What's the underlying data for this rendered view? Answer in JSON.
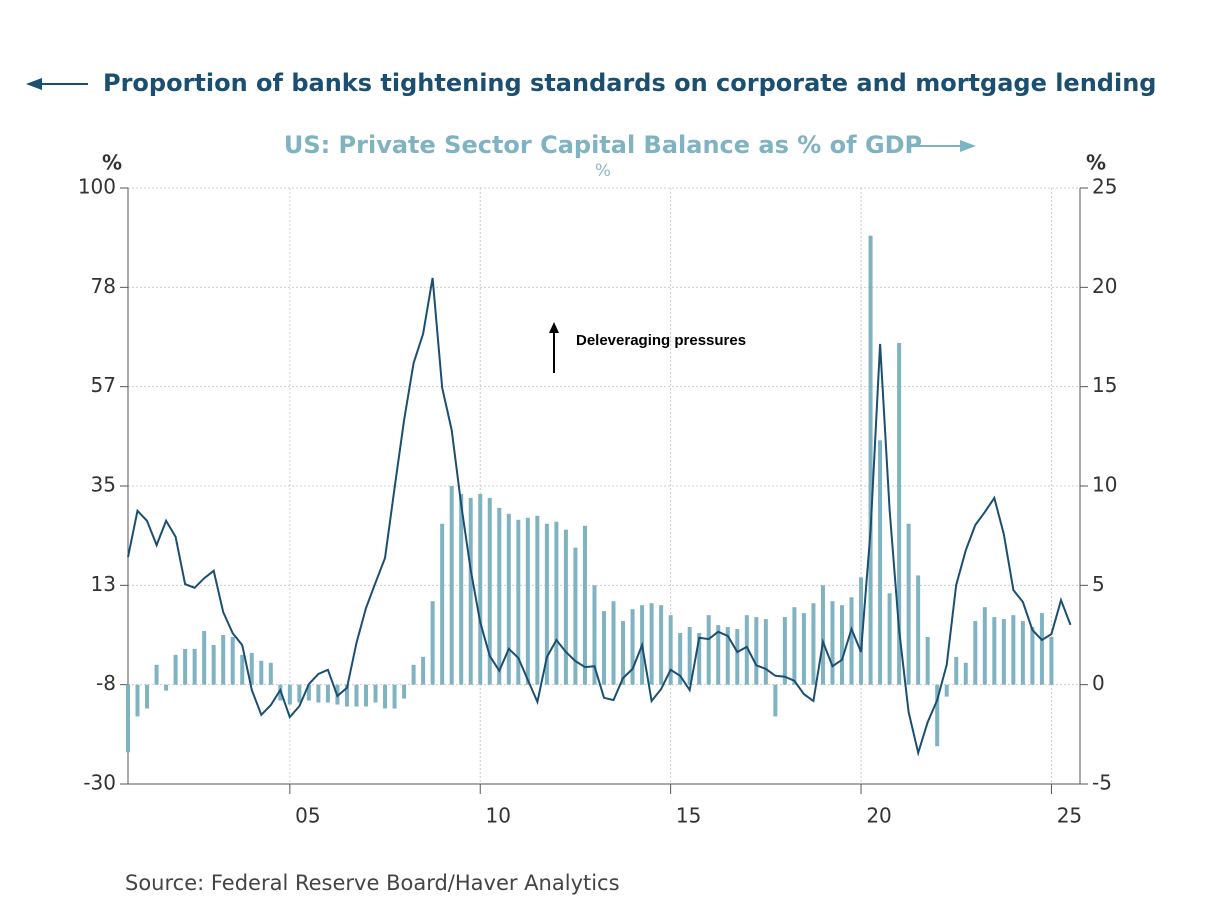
{
  "chart_data": {
    "type": "combo",
    "title": "Proportion of banks tightening standards on corporate and mortgage lending",
    "subtitle": "US: Private Sector Capital Balance as % of GDP",
    "unit_note": "%",
    "y_label": "%",
    "y2_label": "%",
    "annotation": "Deleveraging pressures",
    "source": "Source:  Federal Reserve Board/Haver Analytics",
    "grid": true,
    "xlim": [
      2000.75,
      2025.75
    ],
    "xticks": [
      {
        "value": 2005,
        "label": "05"
      },
      {
        "value": 2010,
        "label": "10"
      },
      {
        "value": 2015,
        "label": "15"
      },
      {
        "value": 2020,
        "label": "20"
      },
      {
        "value": 2025,
        "label": "25"
      }
    ],
    "ylim": [
      -30,
      100
    ],
    "yticks": [
      -30,
      {
        "value": -8.333,
        "label": "-8"
      },
      {
        "value": 13.333,
        "label": "13"
      },
      35,
      {
        "value": 56.667,
        "label": "57"
      },
      {
        "value": 78.333,
        "label": "78"
      },
      100
    ],
    "y2lim": [
      -5,
      25
    ],
    "y2ticks": [
      -5,
      0,
      5,
      10,
      15,
      20,
      25
    ],
    "x": [
      2000.75,
      2001,
      2001.25,
      2001.5,
      2001.75,
      2002,
      2002.25,
      2002.5,
      2002.75,
      2003,
      2003.25,
      2003.5,
      2003.75,
      2004,
      2004.25,
      2004.5,
      2004.75,
      2005,
      2005.25,
      2005.5,
      2005.75,
      2006,
      2006.25,
      2006.5,
      2006.75,
      2007,
      2007.25,
      2007.5,
      2007.75,
      2008,
      2008.25,
      2008.5,
      2008.75,
      2009,
      2009.25,
      2009.5,
      2009.75,
      2010,
      2010.25,
      2010.5,
      2010.75,
      2011,
      2011.25,
      2011.5,
      2011.75,
      2012,
      2012.25,
      2012.5,
      2012.75,
      2013,
      2013.25,
      2013.5,
      2013.75,
      2014,
      2014.25,
      2014.5,
      2014.75,
      2015,
      2015.25,
      2015.5,
      2015.75,
      2016,
      2016.25,
      2016.5,
      2016.75,
      2017,
      2017.25,
      2017.5,
      2017.75,
      2018,
      2018.25,
      2018.5,
      2018.75,
      2019,
      2019.25,
      2019.5,
      2019.75,
      2020,
      2020.25,
      2020.5,
      2020.75,
      2021,
      2021.25,
      2021.5,
      2021.75,
      2022,
      2022.25,
      2022.5,
      2022.75,
      2023,
      2023.25,
      2023.5,
      2023.75,
      2024,
      2024.25,
      2024.5,
      2024.75,
      2025,
      2025.25,
      2025.5
    ],
    "series": [
      {
        "type": "bar",
        "axis": "y2",
        "color": "#7fb3c2",
        "values": [
          -3.4,
          -1.6,
          -1.2,
          1.0,
          -0.3,
          1.5,
          1.8,
          1.8,
          2.7,
          2.0,
          2.5,
          2.4,
          1.5,
          1.6,
          1.2,
          1.1,
          -0.8,
          -1.0,
          -0.9,
          -0.8,
          -0.9,
          -0.9,
          -1.0,
          -1.1,
          -1.1,
          -1.1,
          -0.9,
          -1.2,
          -1.2,
          -0.7,
          1.0,
          1.4,
          4.2,
          8.1,
          10.0,
          9.6,
          9.4,
          9.6,
          9.4,
          8.9,
          8.6,
          8.3,
          8.4,
          8.5,
          8.1,
          8.2,
          7.8,
          6.9,
          8.0,
          5.0,
          3.7,
          4.2,
          3.2,
          3.8,
          4.0,
          4.1,
          4.0,
          3.5,
          2.6,
          2.9,
          2.6,
          3.5,
          3.0,
          2.9,
          2.8,
          3.5,
          3.4,
          3.3,
          -1.6,
          3.4,
          3.9,
          3.6,
          4.1,
          5.0,
          4.2,
          4.0,
          4.4,
          5.4,
          22.6,
          12.3,
          4.6,
          17.2,
          8.1,
          5.5,
          2.4,
          -3.1,
          -0.6,
          1.4,
          1.1,
          3.2,
          3.9,
          3.4,
          3.3,
          3.5,
          3.2,
          2.9,
          3.6,
          2.4,
          null,
          null
        ]
      },
      {
        "type": "line",
        "axis": "y",
        "color": "#1b4f72",
        "values": [
          19.5,
          29.6,
          27.4,
          22.1,
          27.4,
          23.9,
          13.6,
          12.8,
          14.9,
          16.5,
          7.5,
          2.9,
          0.3,
          -9.5,
          -14.9,
          -12.8,
          -9.5,
          -15.4,
          -13,
          -8.2,
          -6.0,
          -5.1,
          -10.8,
          -9.0,
          0.8,
          8.4,
          13.9,
          19.3,
          34.6,
          49.4,
          61.8,
          68.2,
          80.4,
          56.4,
          47.2,
          30.9,
          16.7,
          5.3,
          -2.1,
          -5.3,
          -0.5,
          -2.5,
          -7.3,
          -12.1,
          -2.3,
          1.4,
          -1.2,
          -3.2,
          -4.5,
          -4.3,
          -11.2,
          -11.7,
          -6.9,
          -4.9,
          0.3,
          -11.9,
          -9.3,
          -5.1,
          -6.4,
          -9.5,
          1.9,
          1.6,
          3.2,
          2.3,
          -1.2,
          -0.1,
          -4.1,
          -4.9,
          -6.4,
          -6.6,
          -7.5,
          -10.4,
          -11.9,
          1.0,
          -4.3,
          -2.9,
          3.8,
          -1.2,
          25.4,
          66.0,
          29.8,
          3.6,
          -14.3,
          -23.2,
          -16.5,
          -11.7,
          -4.0,
          13.4,
          21.0,
          26.5,
          29.3,
          32.4,
          24.5,
          12.3,
          9.7,
          3.6,
          1.4,
          2.7,
          10.1,
          4.7
        ]
      }
    ]
  }
}
